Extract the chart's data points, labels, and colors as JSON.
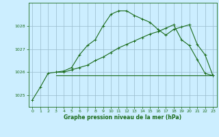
{
  "title": "Graphe pression niveau de la mer (hPa)",
  "bg_color": "#cceeff",
  "grid_color": "#99bbcc",
  "line_color": "#1a6b1a",
  "xlim": [
    -0.5,
    23.5
  ],
  "ylim": [
    1024.5,
    1029.0
  ],
  "xticks": [
    0,
    1,
    2,
    3,
    4,
    5,
    6,
    7,
    8,
    9,
    10,
    11,
    12,
    13,
    14,
    15,
    16,
    17,
    18,
    19,
    20,
    21,
    22,
    23
  ],
  "yticks": [
    1025,
    1026,
    1027,
    1028
  ],
  "line1_x": [
    0,
    1,
    2,
    3,
    4,
    5,
    6,
    7,
    8,
    9,
    10,
    11,
    12,
    13,
    14,
    15,
    16,
    17,
    18,
    19,
    20,
    21,
    22,
    23
  ],
  "line1_y": [
    1024.8,
    1025.35,
    1025.95,
    1026.0,
    1026.05,
    1026.2,
    1026.75,
    1027.15,
    1027.4,
    1028.0,
    1028.5,
    1028.65,
    1028.65,
    1028.45,
    1028.3,
    1028.15,
    1027.85,
    1027.6,
    1027.85,
    1027.95,
    1028.05,
    1027.2,
    1026.75,
    1025.85
  ],
  "line2_x": [
    3,
    4,
    5,
    6,
    7,
    8,
    9,
    10,
    11,
    12,
    13,
    14,
    15,
    16,
    17,
    18,
    19,
    20,
    21,
    22,
    23
  ],
  "line2_y": [
    1026.0,
    1026.0,
    1026.1,
    1026.2,
    1026.3,
    1026.5,
    1026.65,
    1026.85,
    1027.05,
    1027.2,
    1027.35,
    1027.5,
    1027.65,
    1027.75,
    1027.9,
    1028.05,
    1027.4,
    1027.15,
    1026.55,
    1025.95,
    1025.85
  ],
  "line3_x": [
    3,
    23
  ],
  "line3_y": [
    1025.85,
    1025.85
  ]
}
